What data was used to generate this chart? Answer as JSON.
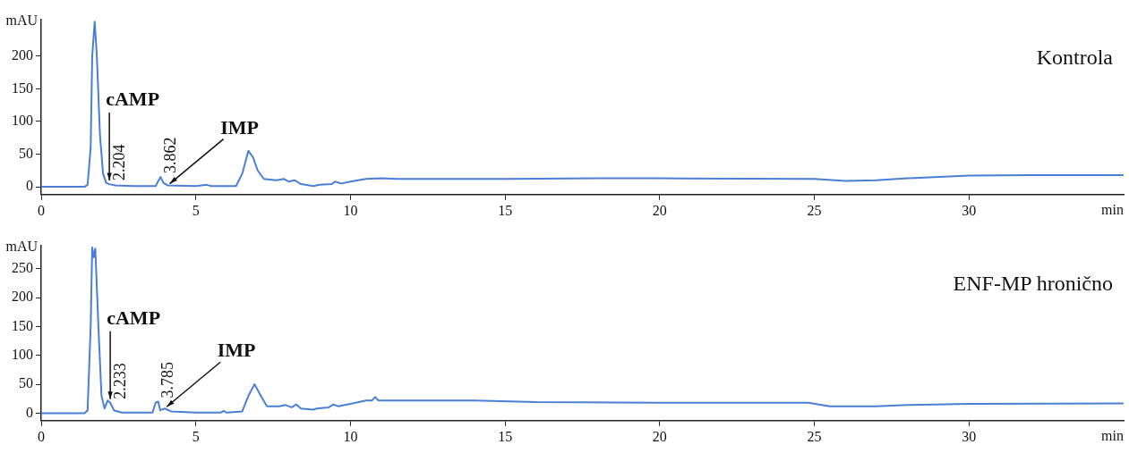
{
  "chart_data": [
    {
      "type": "line",
      "title": "Kontrola",
      "xlabel": "min",
      "ylabel": "mAU",
      "grid": false,
      "legend": false,
      "marker": "none",
      "line_style": "solid",
      "xlim": [
        0,
        35
      ],
      "xticks": [
        0,
        5,
        10,
        15,
        20,
        25,
        30
      ],
      "ylim": [
        -12,
        256
      ],
      "yticks": [
        0,
        50,
        100,
        150,
        200
      ],
      "series": [
        {
          "color": "#4a7fd4",
          "x": [
            0,
            1.4,
            1.5,
            1.6,
            1.65,
            1.73,
            1.8,
            1.9,
            2.0,
            2.1,
            2.204,
            2.4,
            3.0,
            3.7,
            3.8,
            3.862,
            3.95,
            4.1,
            5.0,
            5.35,
            5.5,
            6.3,
            6.5,
            6.7,
            6.85,
            7.0,
            7.2,
            7.6,
            7.85,
            8.0,
            8.2,
            8.4,
            8.8,
            9.0,
            9.4,
            9.5,
            9.7,
            10,
            10.5,
            11,
            11.5,
            15,
            18,
            20,
            25,
            26,
            27,
            28,
            30,
            32,
            35
          ],
          "values": [
            0,
            0,
            3,
            60,
            200,
            253,
            200,
            80,
            20,
            6,
            4,
            2,
            1,
            1,
            10,
            15,
            6,
            2,
            1,
            3,
            1,
            1,
            20,
            55,
            45,
            25,
            12,
            10,
            12,
            8,
            10,
            4,
            1,
            3,
            4,
            8,
            5,
            8,
            12,
            13,
            12,
            12,
            13,
            13,
            12,
            9,
            10,
            13,
            17,
            18,
            18
          ]
        }
      ],
      "annotations": [
        {
          "text": "cAMP",
          "x": 2.204,
          "y": 4
        },
        {
          "text": "2.204",
          "x": 2.204,
          "y": 4
        },
        {
          "text": "IMP",
          "x": 4.1,
          "y": 2
        },
        {
          "text": "3.862",
          "x": 3.862,
          "y": 15
        }
      ]
    },
    {
      "type": "line",
      "title": "ENF-MP hronično",
      "xlabel": "min",
      "ylabel": "mAU",
      "grid": false,
      "legend": false,
      "marker": "none",
      "line_style": "solid",
      "xlim": [
        0,
        35
      ],
      "xticks": [
        0,
        5,
        10,
        15,
        20,
        25,
        30
      ],
      "ylim": [
        -13,
        290
      ],
      "yticks": [
        0,
        50,
        100,
        150,
        200,
        250
      ],
      "series": [
        {
          "color": "#4a7fd4",
          "x": [
            0,
            1.4,
            1.5,
            1.6,
            1.65,
            1.7,
            1.75,
            1.85,
            1.95,
            2.05,
            2.15,
            2.233,
            2.35,
            2.6,
            3.6,
            3.7,
            3.785,
            3.85,
            4.0,
            4.2,
            5.0,
            5.8,
            5.9,
            6.0,
            6.5,
            6.7,
            6.9,
            7.1,
            7.3,
            7.7,
            7.9,
            8.1,
            8.25,
            8.4,
            8.8,
            8.9,
            9.3,
            9.45,
            9.6,
            10,
            10.5,
            10.7,
            10.8,
            10.9,
            14,
            16,
            20,
            24.8,
            25.5,
            27,
            28,
            30,
            35
          ],
          "values": [
            0,
            0,
            5,
            150,
            287,
            270,
            285,
            150,
            30,
            8,
            22,
            18,
            5,
            1,
            1,
            18,
            20,
            5,
            8,
            3,
            1,
            1,
            4,
            1,
            3,
            30,
            50,
            30,
            12,
            12,
            14,
            10,
            15,
            8,
            6,
            8,
            10,
            15,
            12,
            16,
            22,
            22,
            28,
            22,
            22,
            19,
            18,
            18,
            12,
            12,
            14,
            16,
            17
          ]
        }
      ],
      "annotations": [
        {
          "text": "cAMP",
          "x": 2.233,
          "y": 18
        },
        {
          "text": "2.233",
          "x": 2.233,
          "y": 18
        },
        {
          "text": "IMP",
          "x": 4.0,
          "y": 8
        },
        {
          "text": "3.785",
          "x": 3.785,
          "y": 20
        }
      ]
    }
  ]
}
